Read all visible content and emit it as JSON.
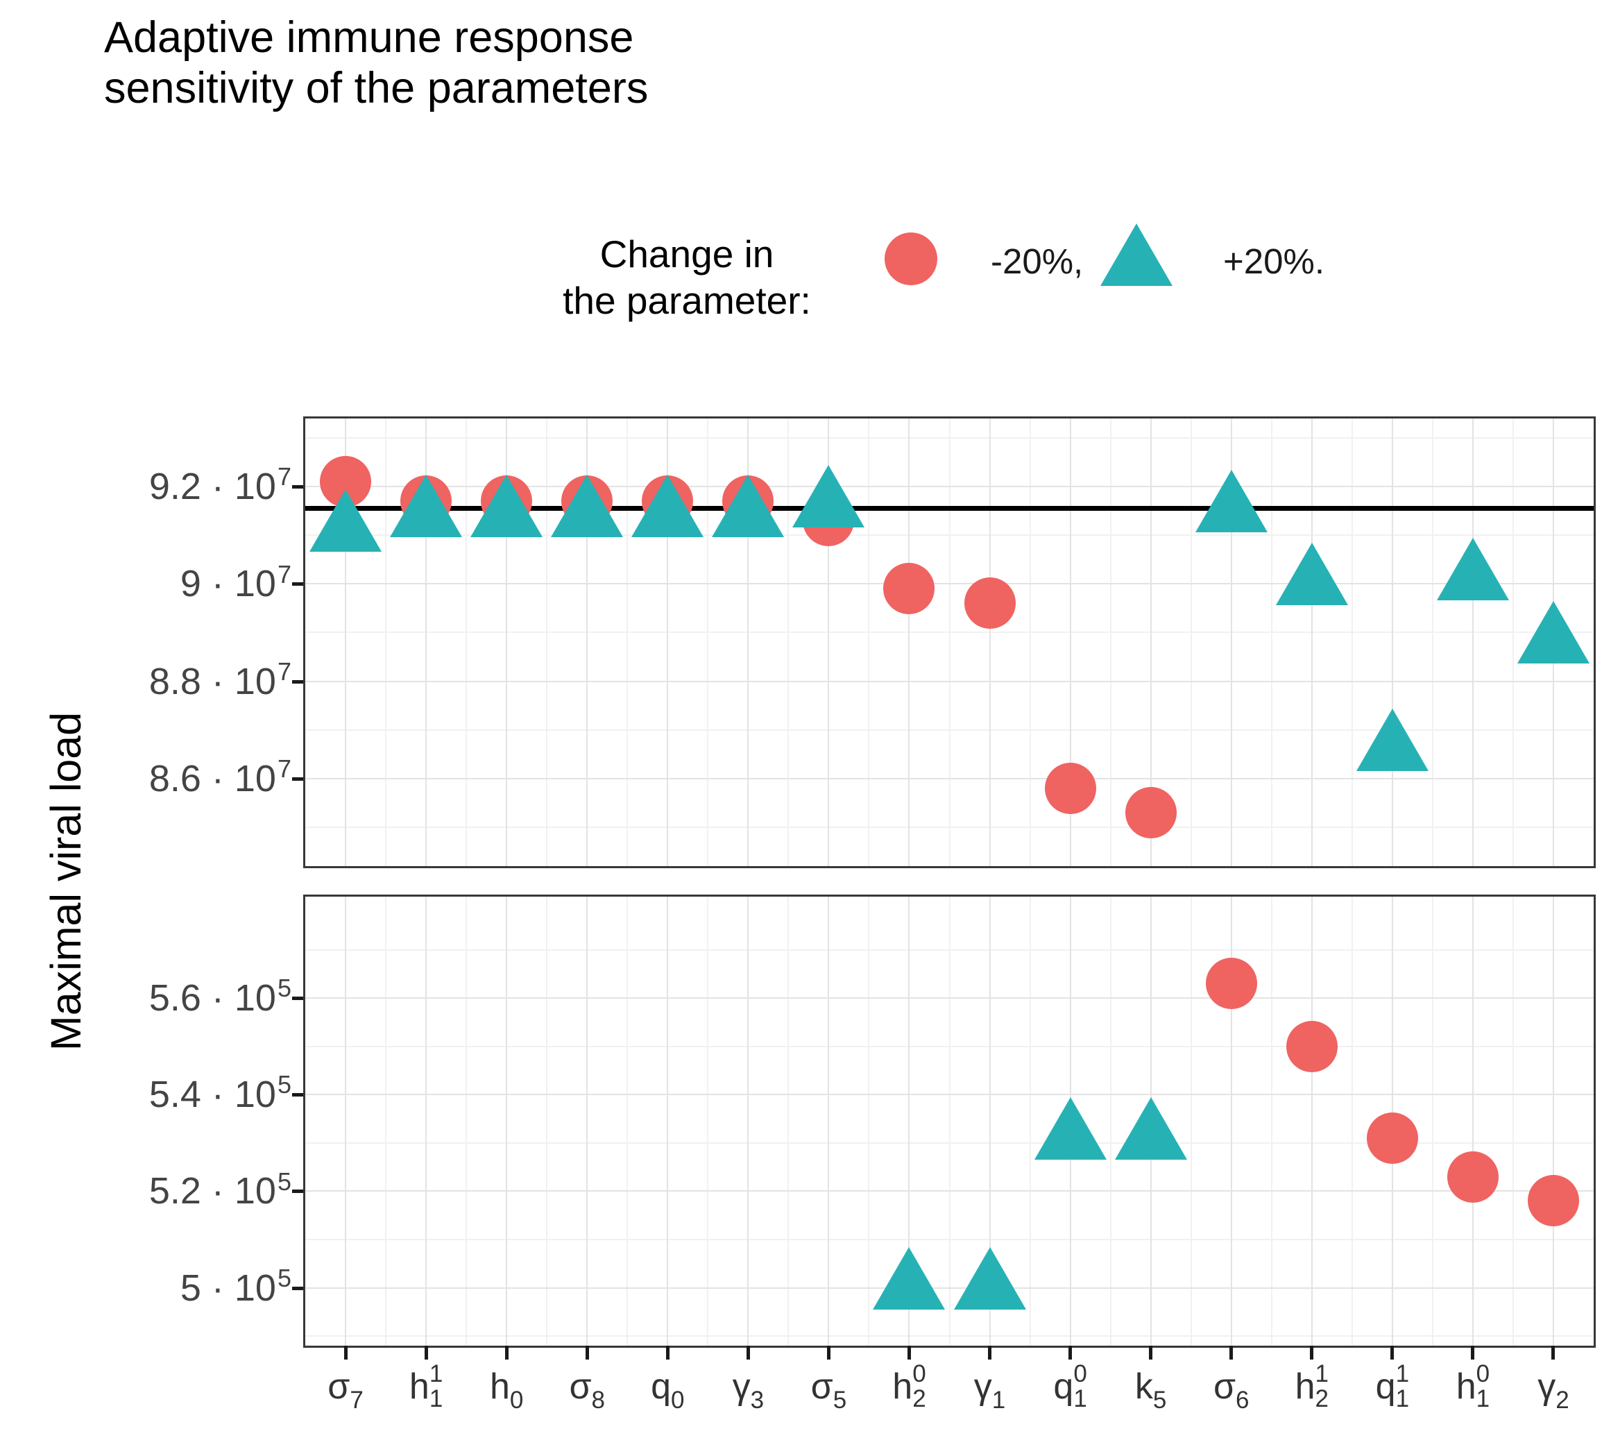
{
  "chart_data": {
    "type": "scatter",
    "title": "Adaptive immune response\n sensitivity of the parameters",
    "ylabel": "Maximal viral load",
    "xlabel": "",
    "grid": "on",
    "legend": {
      "title": "Change in\n the parameter:",
      "position": "top",
      "items": [
        {
          "label": "-20%,",
          "marker": "circle-marker-red",
          "color": "#EF6361"
        },
        {
          "label": "+20%.",
          "marker": "triangle-marker-teal",
          "color": "#26B2B5"
        }
      ]
    },
    "colors": {
      "minus20": "#EF6361",
      "plus20": "#26B2B5",
      "baseline_line": "#000000",
      "grid_major": "#E3E3E3",
      "grid_minor": "#F1F1F1",
      "panel_border": "#383838"
    },
    "categories": [
      {
        "base": "σ",
        "sub": "7",
        "sup": null
      },
      {
        "base": "h",
        "sub": "1",
        "sup": "1"
      },
      {
        "base": "h",
        "sub": "0",
        "sup": null
      },
      {
        "base": "σ",
        "sub": "8",
        "sup": null
      },
      {
        "base": "q",
        "sub": "0",
        "sup": null
      },
      {
        "base": "γ",
        "sub": "3",
        "sup": null
      },
      {
        "base": "σ",
        "sub": "5",
        "sup": null
      },
      {
        "base": "h",
        "sub": "2",
        "sup": "0"
      },
      {
        "base": "γ",
        "sub": "1",
        "sup": null
      },
      {
        "base": "q",
        "sub": "1",
        "sup": "0"
      },
      {
        "base": "k",
        "sub": "5",
        "sup": null
      },
      {
        "base": "σ",
        "sub": "6",
        "sup": null
      },
      {
        "base": "h",
        "sub": "2",
        "sup": "1"
      },
      {
        "base": "q",
        "sub": "1",
        "sup": "1"
      },
      {
        "base": "h",
        "sub": "1",
        "sup": "0"
      },
      {
        "base": "γ",
        "sub": "2",
        "sup": null
      }
    ],
    "panels": [
      {
        "id": "top",
        "unit": "1e7",
        "ylim": [
          8.42,
          9.34
        ],
        "baseline_value": 9.155,
        "ticks": [
          {
            "text": "9.2 · 10",
            "sup": "7",
            "value": 9.2
          },
          {
            "text": "9 · 10",
            "sup": "7",
            "value": 9.0
          },
          {
            "text": "8.8 · 10",
            "sup": "7",
            "value": 8.8
          },
          {
            "text": "8.6 · 10",
            "sup": "7",
            "value": 8.6
          }
        ],
        "minor_tick_values": [
          9.3,
          9.1,
          8.9,
          8.7,
          8.5
        ]
      },
      {
        "id": "bottom",
        "unit": "1e5",
        "ylim": [
          4.88,
          5.81
        ],
        "baseline_value": null,
        "ticks": [
          {
            "text": "5.6 · 10",
            "sup": "5",
            "value": 5.6
          },
          {
            "text": "5.4 · 10",
            "sup": "5",
            "value": 5.4
          },
          {
            "text": "5.2 · 10",
            "sup": "5",
            "value": 5.2
          },
          {
            "text": "5 · 10",
            "sup": "5",
            "value": 5.0
          }
        ],
        "minor_tick_values": [
          5.7,
          5.5,
          5.3,
          5.1,
          4.9
        ]
      }
    ],
    "points": [
      {
        "cat": 0,
        "panel": "top",
        "series": "-20%",
        "value": 9.21
      },
      {
        "cat": 0,
        "panel": "top",
        "series": "+20%",
        "value": 9.13
      },
      {
        "cat": 1,
        "panel": "top",
        "series": "-20%",
        "value": 9.17
      },
      {
        "cat": 1,
        "panel": "top",
        "series": "+20%",
        "value": 9.16
      },
      {
        "cat": 2,
        "panel": "top",
        "series": "-20%",
        "value": 9.17
      },
      {
        "cat": 2,
        "panel": "top",
        "series": "+20%",
        "value": 9.16
      },
      {
        "cat": 3,
        "panel": "top",
        "series": "-20%",
        "value": 9.17
      },
      {
        "cat": 3,
        "panel": "top",
        "series": "+20%",
        "value": 9.16
      },
      {
        "cat": 4,
        "panel": "top",
        "series": "-20%",
        "value": 9.17
      },
      {
        "cat": 4,
        "panel": "top",
        "series": "+20%",
        "value": 9.16
      },
      {
        "cat": 5,
        "panel": "top",
        "series": "-20%",
        "value": 9.17
      },
      {
        "cat": 5,
        "panel": "top",
        "series": "+20%",
        "value": 9.16
      },
      {
        "cat": 6,
        "panel": "top",
        "series": "-20%",
        "value": 9.13
      },
      {
        "cat": 6,
        "panel": "top",
        "series": "+20%",
        "value": 9.18
      },
      {
        "cat": 7,
        "panel": "top",
        "series": "-20%",
        "value": 8.99
      },
      {
        "cat": 7,
        "panel": "bottom",
        "series": "+20%",
        "value": 5.02
      },
      {
        "cat": 8,
        "panel": "top",
        "series": "-20%",
        "value": 8.96
      },
      {
        "cat": 8,
        "panel": "bottom",
        "series": "+20%",
        "value": 5.02
      },
      {
        "cat": 9,
        "panel": "top",
        "series": "-20%",
        "value": 8.58
      },
      {
        "cat": 9,
        "panel": "bottom",
        "series": "+20%",
        "value": 5.33
      },
      {
        "cat": 10,
        "panel": "top",
        "series": "-20%",
        "value": 8.53
      },
      {
        "cat": 10,
        "panel": "bottom",
        "series": "+20%",
        "value": 5.33
      },
      {
        "cat": 11,
        "panel": "bottom",
        "series": "-20%",
        "value": 5.63
      },
      {
        "cat": 11,
        "panel": "top",
        "series": "+20%",
        "value": 9.17
      },
      {
        "cat": 12,
        "panel": "bottom",
        "series": "-20%",
        "value": 5.5
      },
      {
        "cat": 12,
        "panel": "top",
        "series": "+20%",
        "value": 9.02
      },
      {
        "cat": 13,
        "panel": "bottom",
        "series": "-20%",
        "value": 5.31
      },
      {
        "cat": 13,
        "panel": "top",
        "series": "+20%",
        "value": 8.68
      },
      {
        "cat": 14,
        "panel": "bottom",
        "series": "-20%",
        "value": 5.23
      },
      {
        "cat": 14,
        "panel": "top",
        "series": "+20%",
        "value": 9.03
      },
      {
        "cat": 15,
        "panel": "bottom",
        "series": "-20%",
        "value": 5.18
      },
      {
        "cat": 15,
        "panel": "top",
        "series": "+20%",
        "value": 8.9
      }
    ]
  }
}
